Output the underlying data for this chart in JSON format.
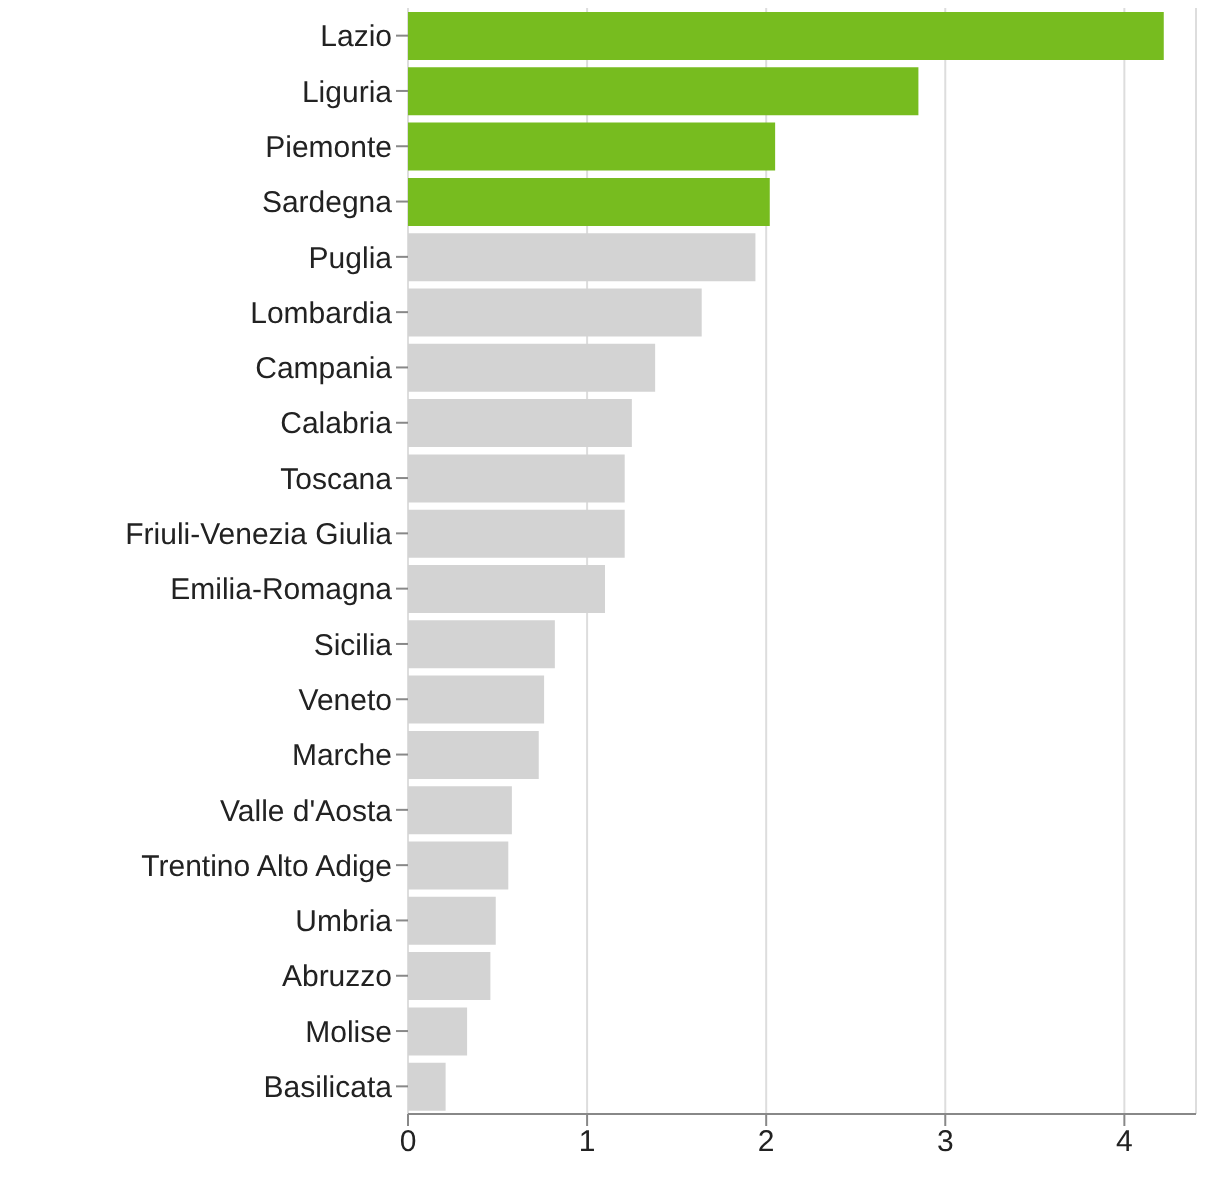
{
  "chart_data": {
    "type": "bar",
    "orientation": "horizontal",
    "categories": [
      "Lazio",
      "Liguria",
      "Piemonte",
      "Sardegna",
      "Puglia",
      "Lombardia",
      "Campania",
      "Calabria",
      "Toscana",
      "Friuli-Venezia Giulia",
      "Emilia-Romagna",
      "Sicilia",
      "Veneto",
      "Marche",
      "Valle d'Aosta",
      "Trentino Alto Adige",
      "Umbria",
      "Abruzzo",
      "Molise",
      "Basilicata"
    ],
    "values": [
      4.22,
      2.85,
      2.05,
      2.02,
      1.94,
      1.64,
      1.38,
      1.25,
      1.21,
      1.21,
      1.1,
      0.82,
      0.76,
      0.73,
      0.58,
      0.56,
      0.49,
      0.46,
      0.33,
      0.21
    ],
    "colors": [
      "#77bc1f",
      "#77bc1f",
      "#77bc1f",
      "#77bc1f",
      "#d3d3d3",
      "#d3d3d3",
      "#d3d3d3",
      "#d3d3d3",
      "#d3d3d3",
      "#d3d3d3",
      "#d3d3d3",
      "#d3d3d3",
      "#d3d3d3",
      "#d3d3d3",
      "#d3d3d3",
      "#d3d3d3",
      "#d3d3d3",
      "#d3d3d3",
      "#d3d3d3",
      "#d3d3d3"
    ],
    "xlim": [
      0,
      4.4
    ],
    "xticks": [
      0,
      1,
      2,
      3,
      4
    ],
    "grid": "x"
  }
}
